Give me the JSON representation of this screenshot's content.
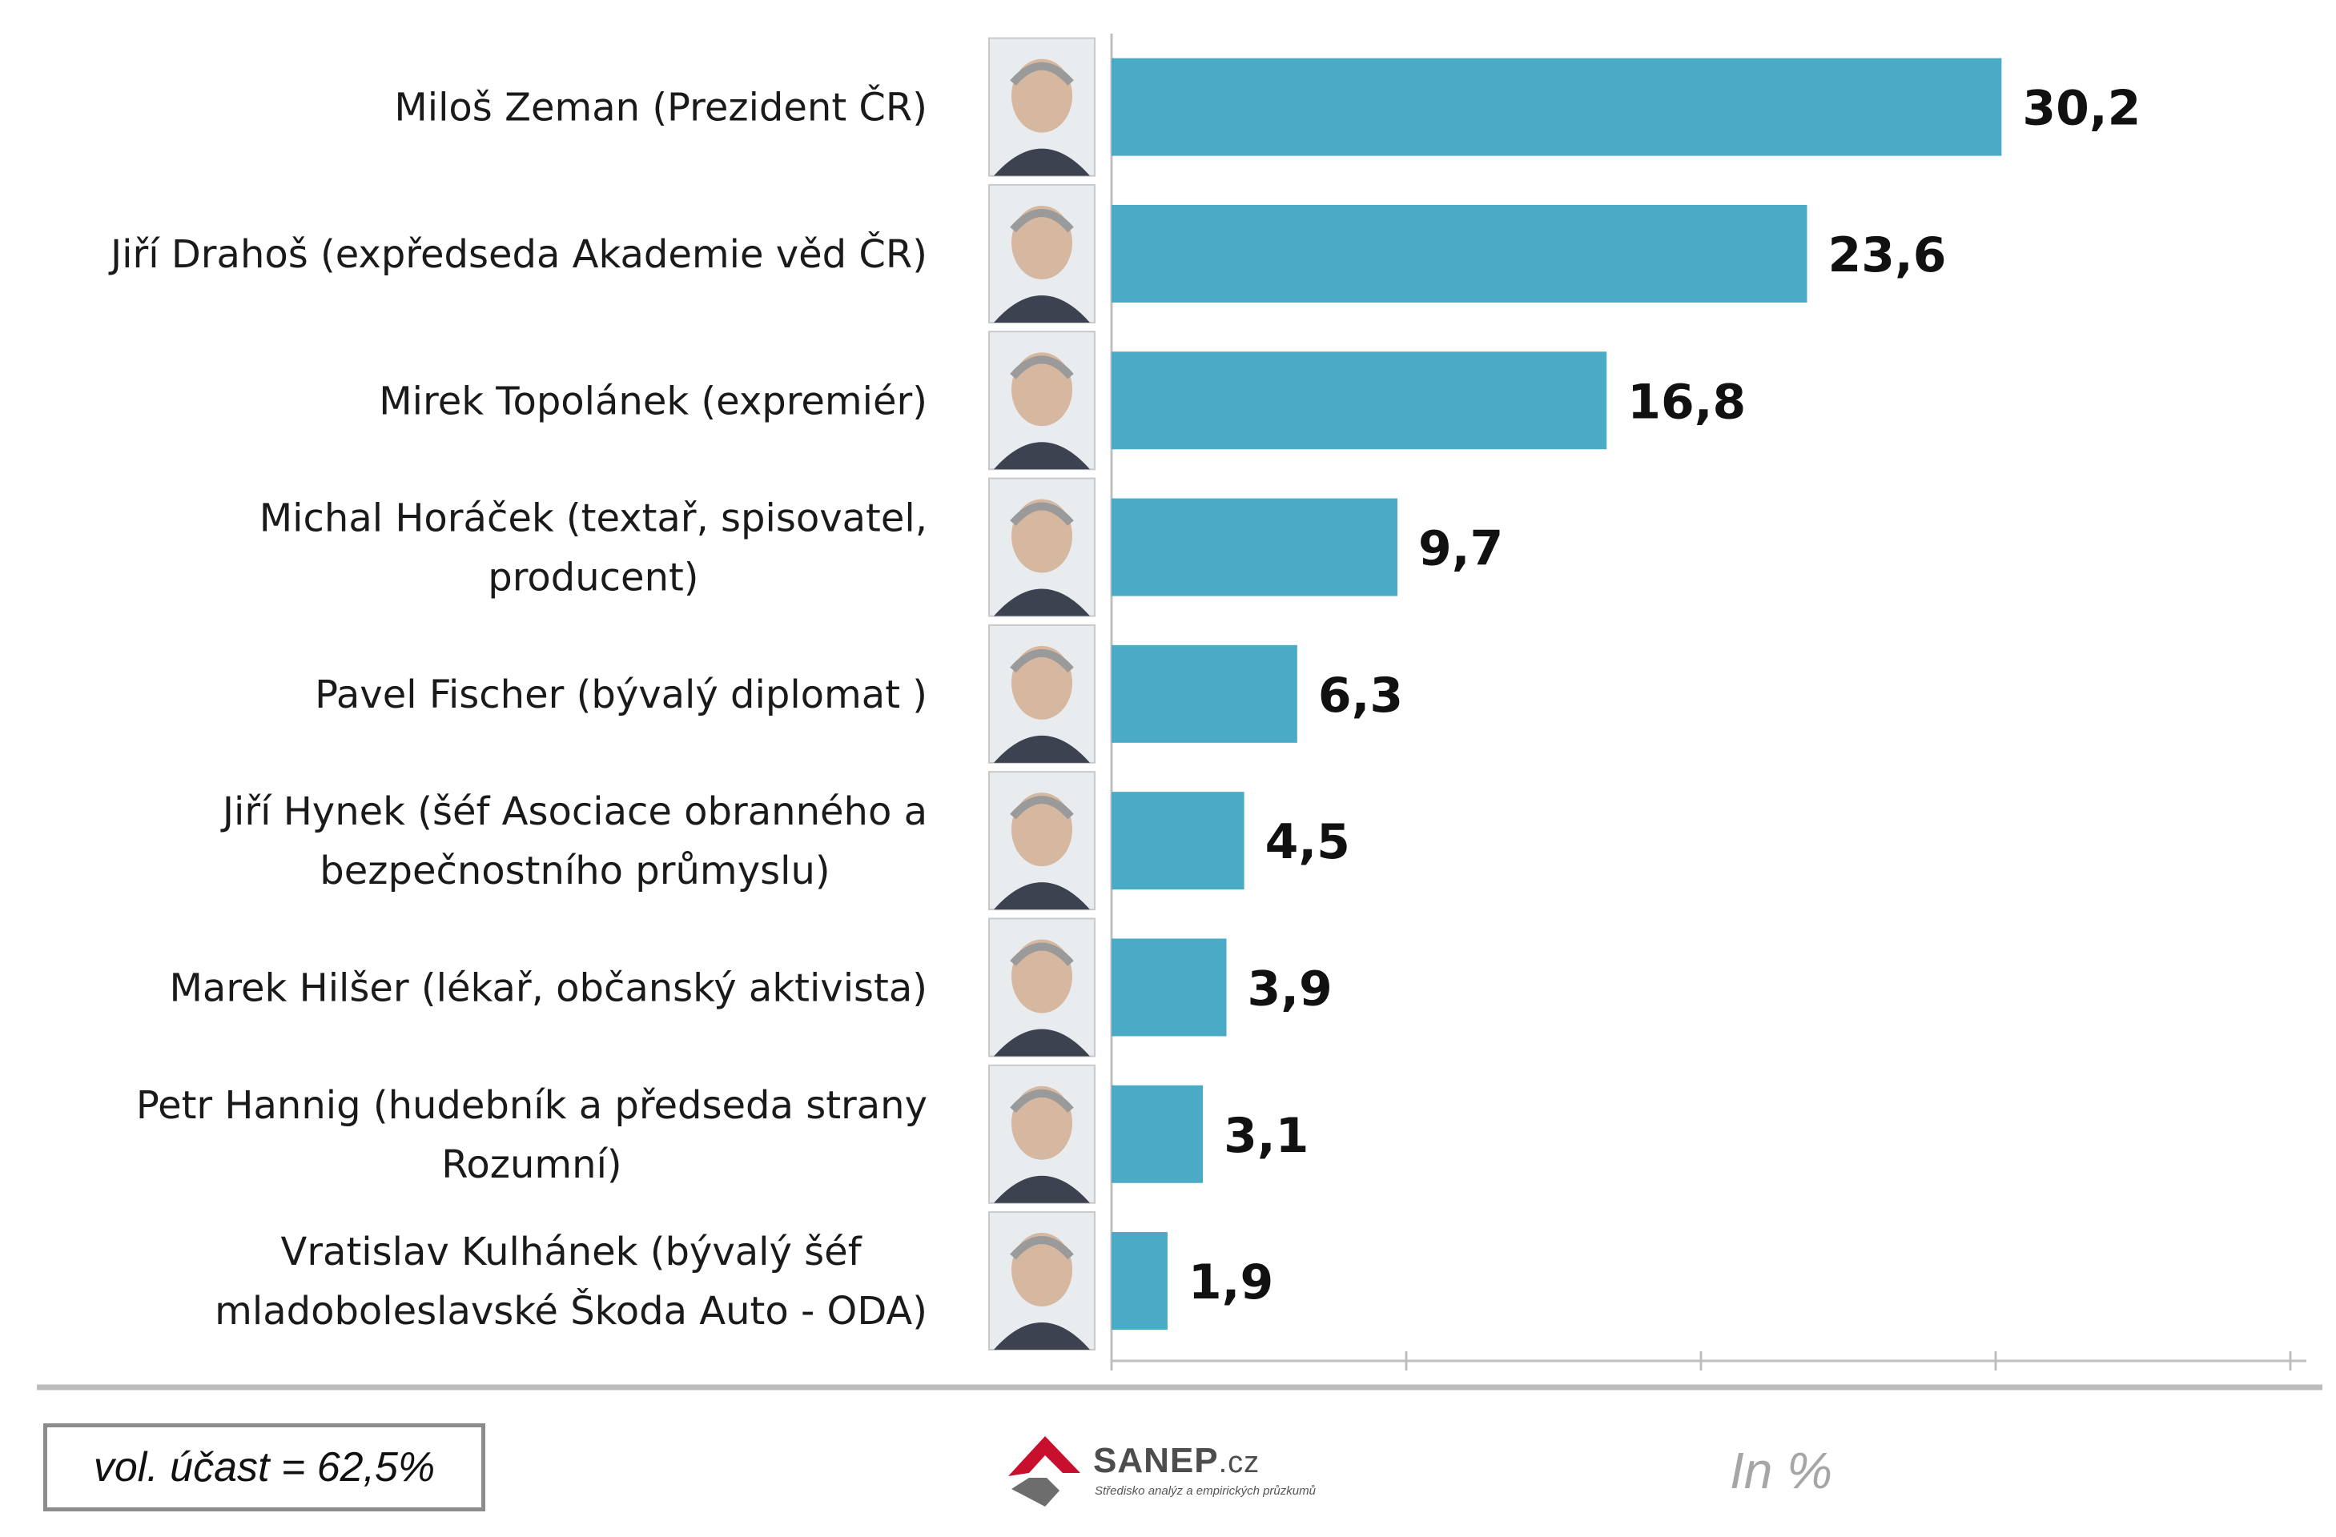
{
  "chart_data": {
    "type": "bar",
    "orientation": "horizontal",
    "categories": [
      [
        "Miloš Zeman (Prezident ČR)"
      ],
      [
        "Jiří Drahoš (expředseda Akademie věd ČR)"
      ],
      [
        "Mirek Topolánek (expremiér)"
      ],
      [
        "Michal Horáček (textař, spisovatel,",
        "producent)"
      ],
      [
        "Pavel Fischer (bývalý diplomat )"
      ],
      [
        "Jiří Hynek (šéf Asociace obranného a",
        "bezpečnostního průmyslu)"
      ],
      [
        "Marek Hilšer (lékař, občanský aktivista)"
      ],
      [
        "Petr Hannig (hudebník a předseda strany",
        "Rozumní)"
      ],
      [
        "Vratislav Kulhánek (bývalý šéf",
        "mladoboleslavské Škoda Auto - ODA)"
      ]
    ],
    "values": [
      30.2,
      23.6,
      16.8,
      9.7,
      6.3,
      4.5,
      3.9,
      3.1,
      1.9
    ],
    "value_labels": [
      "30,2",
      "23,6",
      "16,8",
      "9,7",
      "6,3",
      "4,5",
      "3,9",
      "3,1",
      "1,9"
    ],
    "xlim": [
      0,
      40
    ],
    "x_ticks": [
      0,
      10,
      20,
      30,
      40
    ],
    "tick_labels_shown": false,
    "grid": false,
    "bar_color": "#4babc6",
    "portraits": [
      "avatar",
      "avatar",
      "avatar",
      "avatar",
      "avatar",
      "avatar",
      "avatar",
      "avatar",
      "avatar"
    ]
  },
  "footer": {
    "turnout": "vol. účast = 62,5%",
    "units": "In %",
    "logo": {
      "name": "SANEP",
      "suffix": ".cz",
      "tagline": "Středisko analýz a empirických průzkumů",
      "colors": {
        "red": "#c8102e",
        "gray": "#6d6d6d"
      }
    }
  }
}
